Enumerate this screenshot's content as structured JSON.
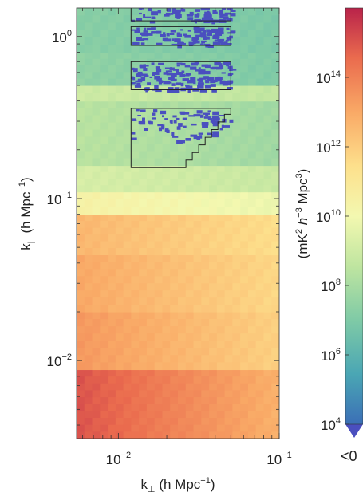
{
  "chart_data": {
    "type": "heatmap",
    "title": "",
    "xlabel": {
      "main": "k",
      "sub": "⊥",
      "rest": " (h Mpc",
      "sup": "−1",
      "close": ")"
    },
    "ylabel": {
      "main": "k",
      "sub": "| |",
      "rest": " (h Mpc",
      "sup": "−1",
      "close": ")"
    },
    "x_scale": "log",
    "y_scale": "log",
    "xlim": [
      0.0055,
      0.1
    ],
    "ylim": [
      0.0033,
      1.5
    ],
    "x_ticks": [
      {
        "value": 0.01,
        "base": "10",
        "exp": "−2"
      },
      {
        "value": 0.1,
        "base": "10",
        "exp": "−1"
      }
    ],
    "y_ticks": [
      {
        "value": 0.01,
        "base": "10",
        "exp": "−2"
      },
      {
        "value": 0.1,
        "base": "10",
        "exp": "−1"
      },
      {
        "value": 1,
        "base": "10",
        "exp": "0"
      }
    ],
    "colorbar": {
      "scale": "log",
      "range": [
        10000,
        10000000000000000
      ],
      "colormap": "Spectral_r",
      "label": {
        "a": "(mK",
        "a_sup": "2",
        "b": " h",
        "b_sup": "−3",
        "c": " Mpc",
        "c_sup": "3",
        "d": ")"
      },
      "ticks": [
        {
          "value": 10000,
          "base": "10",
          "exp": "4"
        },
        {
          "value": 1000000,
          "base": "10",
          "exp": "6"
        },
        {
          "value": 100000000,
          "base": "10",
          "exp": "8"
        },
        {
          "value": 10000000000,
          "base": "10",
          "exp": "10"
        },
        {
          "value": 1000000000000,
          "base": "10",
          "exp": "12"
        },
        {
          "value": 100000000000000,
          "base": "10",
          "exp": "14"
        }
      ],
      "under_label": "<0",
      "under_color": "#4a4fbf"
    },
    "bands_log10_power": [
      {
        "k_par_range": [
          0.0033,
          0.0088
        ],
        "left": 15.0,
        "right": 12.8
      },
      {
        "k_par_range": [
          0.0088,
          0.02
        ],
        "left": 13.4,
        "right": 11.9
      },
      {
        "k_par_range": [
          0.02,
          0.045
        ],
        "left": 13.0,
        "right": 11.7
      },
      {
        "k_par_range": [
          0.045,
          0.08
        ],
        "left": 12.6,
        "right": 11.5
      },
      {
        "k_par_range": [
          0.08,
          0.11
        ],
        "left": 10.4,
        "right": 9.8
      },
      {
        "k_par_range": [
          0.11,
          0.16
        ],
        "left": 9.2,
        "right": 8.8
      },
      {
        "k_par_range": [
          0.16,
          0.4
        ],
        "left": 8.4,
        "right": 7.8
      },
      {
        "k_par_range": [
          0.4,
          0.5
        ],
        "left": 8.9,
        "right": 8.6
      },
      {
        "k_par_range": [
          0.5,
          0.8
        ],
        "left": 7.4,
        "right": 7.0
      },
      {
        "k_par_range": [
          0.8,
          1.5
        ],
        "left": 7.2,
        "right": 6.9
      }
    ],
    "outlined_regions": [
      {
        "x": [
          0.012,
          0.05
        ],
        "y": [
          1.25,
          1.52
        ]
      },
      {
        "x": [
          0.012,
          0.05
        ],
        "y": [
          0.88,
          1.15
        ]
      },
      {
        "x": [
          0.012,
          0.05
        ],
        "y": [
          0.47,
          0.7
        ]
      },
      {
        "x": [
          0.012,
          0.05
        ],
        "y": [
          0.155,
          0.36
        ],
        "stepped_edge": true
      }
    ]
  }
}
